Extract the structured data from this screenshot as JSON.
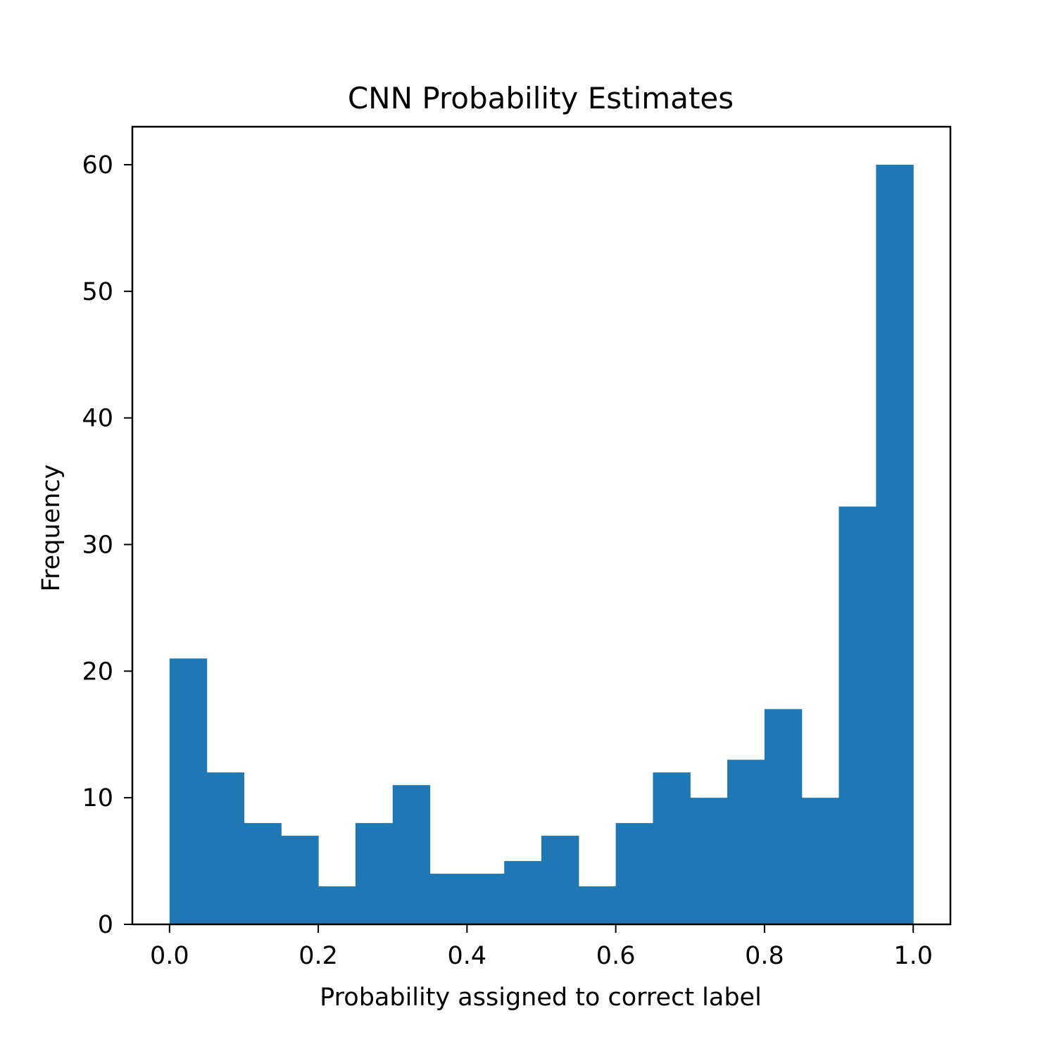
{
  "chart_data": {
    "type": "bar",
    "title": "CNN Probability Estimates",
    "xlabel": "Probability assigned to correct label",
    "ylabel": "Frequency",
    "bin_edges": [
      0.0,
      0.05,
      0.1,
      0.15,
      0.2,
      0.25,
      0.3,
      0.35,
      0.4,
      0.45,
      0.5,
      0.55,
      0.6,
      0.65,
      0.7,
      0.75,
      0.8,
      0.85,
      0.9,
      0.95,
      1.0
    ],
    "values": [
      21,
      12,
      8,
      7,
      3,
      8,
      11,
      4,
      4,
      5,
      7,
      3,
      8,
      12,
      10,
      13,
      17,
      10,
      33,
      60
    ],
    "xlim": [
      -0.05,
      1.05
    ],
    "ylim": [
      0,
      63
    ],
    "x_ticks": [
      0.0,
      0.2,
      0.4,
      0.6,
      0.8,
      1.0
    ],
    "x_tick_labels": [
      "0.0",
      "0.2",
      "0.4",
      "0.6",
      "0.8",
      "1.0"
    ],
    "y_ticks": [
      0,
      10,
      20,
      30,
      40,
      50,
      60
    ],
    "y_tick_labels": [
      "0",
      "10",
      "20",
      "30",
      "40",
      "50",
      "60"
    ],
    "bar_color": "#1f77b4",
    "grid": false,
    "legend": "none"
  }
}
